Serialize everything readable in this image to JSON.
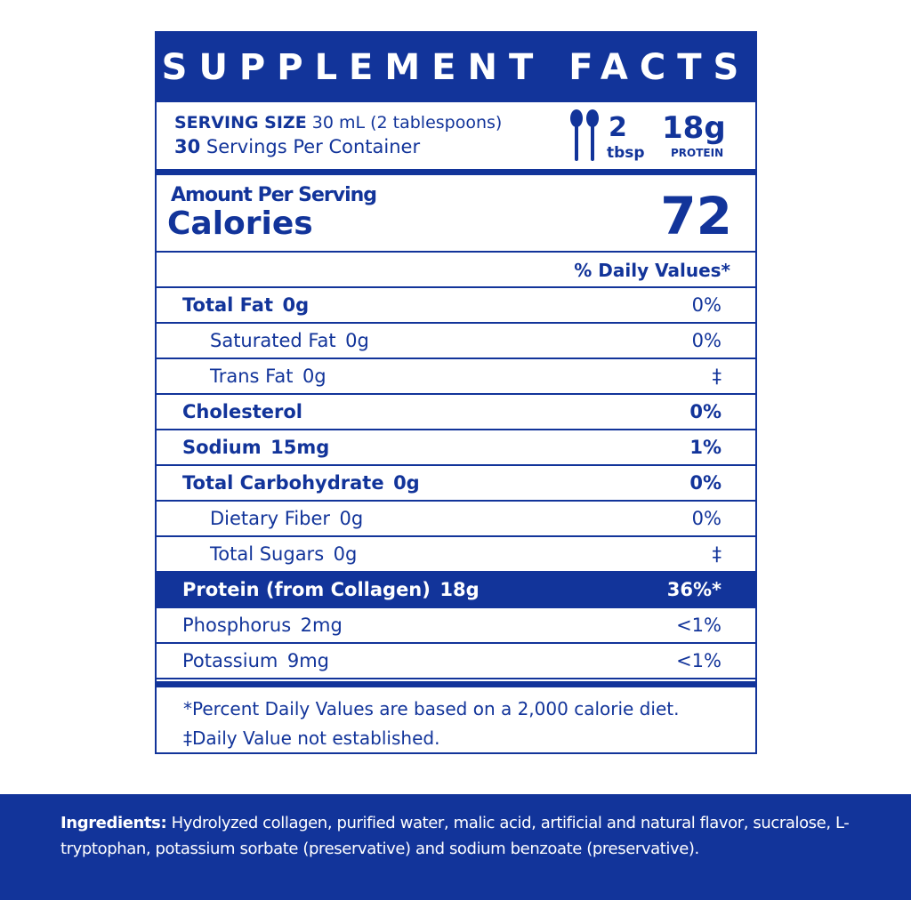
{
  "header": {
    "title": "SUPPLEMENT FACTS"
  },
  "serving": {
    "size_label": "SERVING SIZE",
    "size": "30 mL (2 tablespoons)",
    "servings_count": "30",
    "servings_label": "Servings Per Container",
    "icon_amount": "2",
    "icon_unit": "tbsp",
    "protein_amount": "18g",
    "protein_label": "PROTEIN"
  },
  "calories": {
    "heading": "Amount Per Serving",
    "label": "Calories",
    "value": "72"
  },
  "dv_heading": "% Daily Values*",
  "rows": [
    {
      "name": "Total Fat",
      "amount": "0g",
      "dv": "0%",
      "bold": true,
      "indent": false,
      "dv_bold": false,
      "highlight": false
    },
    {
      "name": "Saturated Fat",
      "amount": "0g",
      "dv": "0%",
      "bold": false,
      "indent": true,
      "dv_bold": false,
      "highlight": false
    },
    {
      "name": "Trans Fat",
      "amount": "0g",
      "dv": "‡",
      "bold": false,
      "indent": true,
      "dv_bold": false,
      "highlight": false
    },
    {
      "name": "Cholesterol",
      "amount": null,
      "dv": "0%",
      "bold": true,
      "indent": false,
      "dv_bold": true,
      "highlight": false
    },
    {
      "name": "Sodium",
      "amount": "15mg",
      "dv": "1%",
      "bold": true,
      "indent": false,
      "dv_bold": true,
      "highlight": false
    },
    {
      "name": "Total Carbohydrate",
      "amount": "0g",
      "dv": "0%",
      "bold": true,
      "indent": false,
      "dv_bold": true,
      "highlight": false
    },
    {
      "name": "Dietary Fiber",
      "amount": "0g",
      "dv": "0%",
      "bold": false,
      "indent": true,
      "dv_bold": false,
      "highlight": false
    },
    {
      "name": "Total Sugars",
      "amount": "0g",
      "dv": "‡",
      "bold": false,
      "indent": true,
      "dv_bold": false,
      "highlight": false
    },
    {
      "name": "Protein (from Collagen)",
      "amount": "18g",
      "dv": "36%*",
      "bold": true,
      "indent": false,
      "dv_bold": true,
      "highlight": true
    },
    {
      "name": "Phosphorus",
      "amount": "2mg",
      "dv": "<1%",
      "bold": false,
      "indent": false,
      "dv_bold": false,
      "highlight": false
    },
    {
      "name": "Potassium",
      "amount": "9mg",
      "dv": "<1%",
      "bold": false,
      "indent": false,
      "dv_bold": false,
      "highlight": false
    }
  ],
  "footnotes": [
    "*Percent Daily Values are based on a 2,000 calorie diet.",
    "‡Daily Value not established."
  ],
  "ingredients": {
    "label": "Ingredients:",
    "text": "Hydrolyzed collagen, purified water, malic acid, artificial and natural flavor, sucralose, L-tryptophan, potassium sorbate (preservative) and sodium benzoate (preservative)."
  }
}
